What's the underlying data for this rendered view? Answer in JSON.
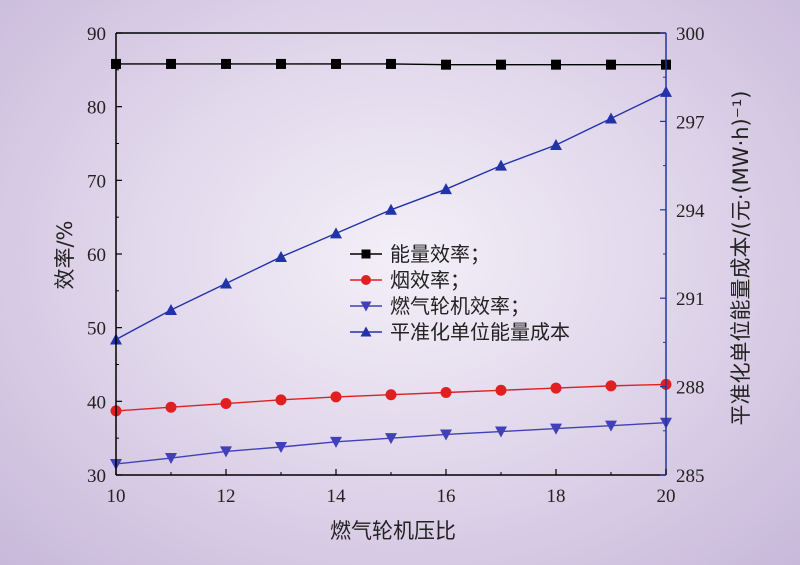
{
  "chart_data": {
    "type": "line",
    "xlabel": "燃气轮机压比",
    "ylabel_left": "效率/%",
    "ylabel_right": "平准化单位能量成本/(元·(MW·h)⁻¹)",
    "x": [
      10,
      11,
      12,
      13,
      14,
      15,
      16,
      17,
      18,
      19,
      20
    ],
    "xlim": [
      10,
      20
    ],
    "xticks": [
      10,
      12,
      14,
      16,
      18,
      20
    ],
    "ylim_left": [
      30,
      90
    ],
    "yticks_left": [
      30,
      40,
      50,
      60,
      70,
      80,
      90
    ],
    "ylim_right": [
      285,
      300
    ],
    "yticks_right": [
      285,
      288,
      291,
      294,
      297,
      300
    ],
    "legend_position": "center",
    "grid": false,
    "series": [
      {
        "name": "能量效率；",
        "axis": "left",
        "marker": "square",
        "color": "#000000",
        "values": [
          85.8,
          85.8,
          85.8,
          85.8,
          85.8,
          85.8,
          85.7,
          85.7,
          85.7,
          85.7,
          85.7
        ]
      },
      {
        "name": "烟效率；",
        "axis": "left",
        "marker": "circle",
        "color": "#e02020",
        "values": [
          38.7,
          39.2,
          39.7,
          40.2,
          40.6,
          40.9,
          41.2,
          41.5,
          41.8,
          42.1,
          42.3
        ]
      },
      {
        "name": "燃气轮机效率；",
        "axis": "left",
        "marker": "triangle-down",
        "color": "#4040b8",
        "values": [
          31.5,
          32.3,
          33.2,
          33.8,
          34.5,
          35.0,
          35.5,
          35.9,
          36.3,
          36.7,
          37.1
        ]
      },
      {
        "name": "平准化单位能量成本",
        "axis": "right",
        "marker": "triangle-up",
        "color": "#2233aa",
        "values": [
          289.6,
          290.6,
          291.5,
          292.4,
          293.2,
          294.0,
          294.7,
          295.5,
          296.2,
          297.1,
          298.0
        ]
      }
    ]
  }
}
